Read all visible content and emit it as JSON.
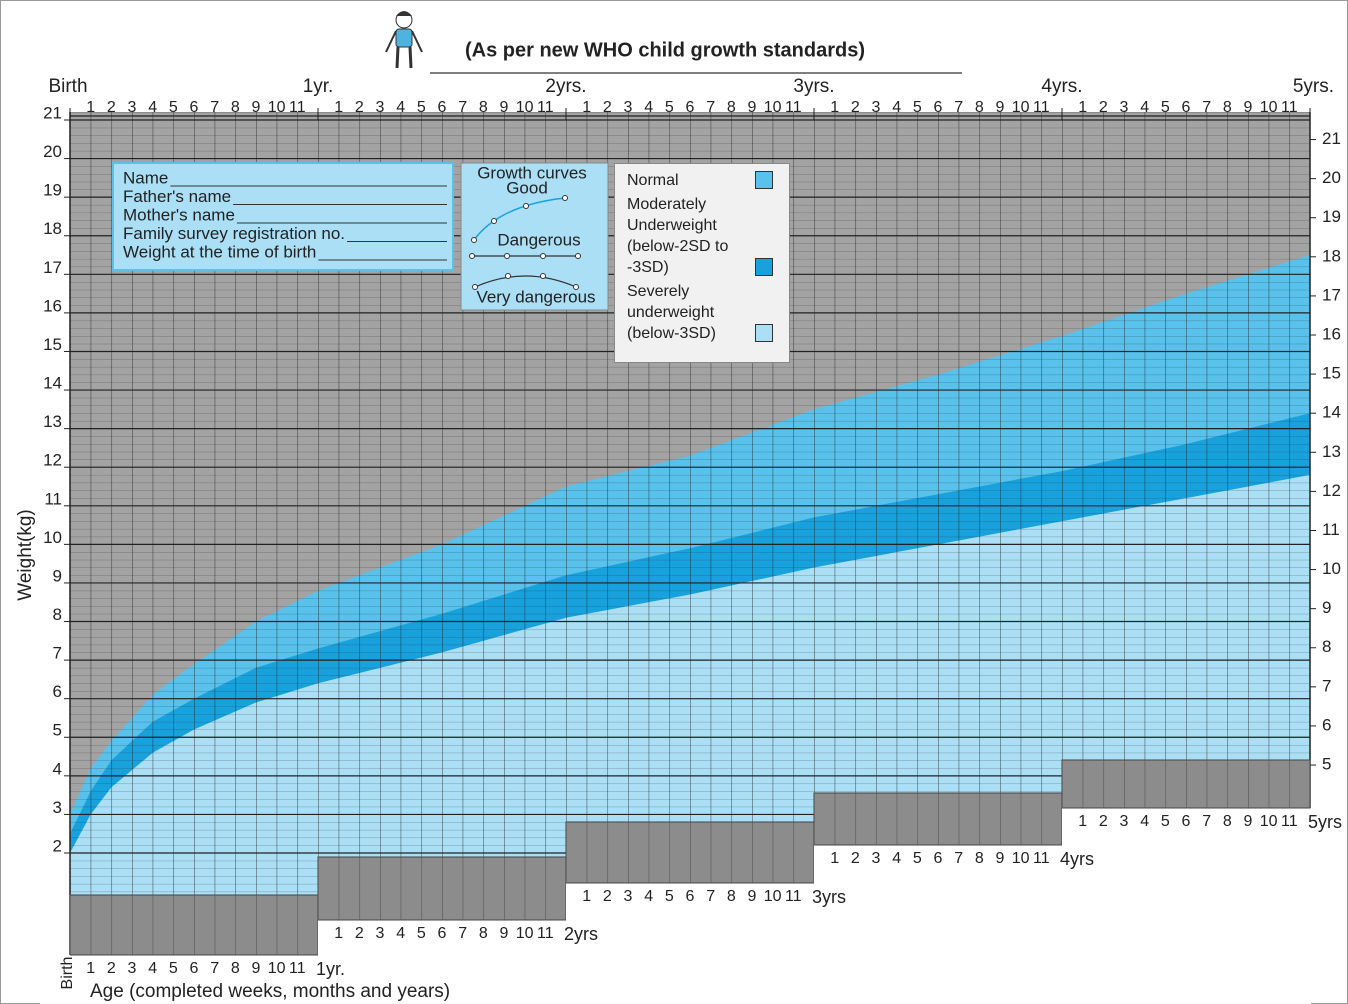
{
  "chart_data": {
    "type": "band",
    "title": "(As per new WHO child growth standards)",
    "y_label": "Weight(kg)",
    "x_label": "Age (completed weeks, months and years)",
    "x": [
      0,
      1,
      2,
      4,
      6,
      9,
      12,
      18,
      24,
      30,
      36,
      42,
      48,
      54,
      60
    ],
    "xlim": [
      0,
      60
    ],
    "xticks": [
      {
        "value": 0,
        "label": "Birth"
      },
      {
        "value": 12,
        "label": "1yr."
      },
      {
        "value": 24,
        "label": "2yrs."
      },
      {
        "value": 36,
        "label": "3yrs."
      },
      {
        "value": 48,
        "label": "4yrs."
      },
      {
        "value": 60,
        "label": "5yrs."
      }
    ],
    "month_labels": [
      "1",
      "2",
      "3",
      "4",
      "5",
      "6",
      "7",
      "8",
      "9",
      "10",
      "11"
    ],
    "bottom_year_labels": [
      "Birth",
      "1yr.",
      "2yrs",
      "3yrs",
      "4yrs",
      "5yrs"
    ],
    "ylim": [
      2,
      21
    ],
    "yticks": [
      2,
      3,
      4,
      5,
      6,
      7,
      8,
      9,
      10,
      11,
      12,
      13,
      14,
      15,
      16,
      17,
      18,
      19,
      20,
      21
    ],
    "y2lim": [
      2.75,
      21.5
    ],
    "y2ticks": [
      5,
      6,
      7,
      8,
      9,
      10,
      11,
      12,
      13,
      14,
      15,
      16,
      17,
      18,
      19,
      20,
      21
    ],
    "grid": true,
    "series": [
      {
        "name": "Normal",
        "color": "#58c2ec",
        "values": [
          3.0,
          4.2,
          4.9,
          6.1,
          6.9,
          8.0,
          8.8,
          10.0,
          11.5,
          12.3,
          13.5,
          14.4,
          15.4,
          16.5,
          17.5
        ]
      },
      {
        "name": "Moderately Underweight (below-2SD to -3SD)",
        "color": "#17a1dd",
        "values": [
          2.5,
          3.6,
          4.4,
          5.4,
          6.0,
          6.8,
          7.3,
          8.2,
          9.2,
          9.9,
          10.7,
          11.3,
          11.9,
          12.6,
          13.4
        ]
      },
      {
        "name": "Severely underweight (below-3SD)",
        "color": "#abdff6",
        "values": [
          2.0,
          3.0,
          3.7,
          4.6,
          5.2,
          5.9,
          6.4,
          7.2,
          8.1,
          8.7,
          9.4,
          10.0,
          10.6,
          11.2,
          11.8
        ]
      }
    ]
  },
  "info_box": {
    "fields": [
      "Name",
      "Father's name",
      "Mother's name",
      "Family survey registration no.",
      "Weight at the time of birth"
    ]
  },
  "growth_curves": {
    "title": "Growth curves",
    "labels": [
      "Good",
      "Dangerous",
      "Very dangerous"
    ]
  }
}
